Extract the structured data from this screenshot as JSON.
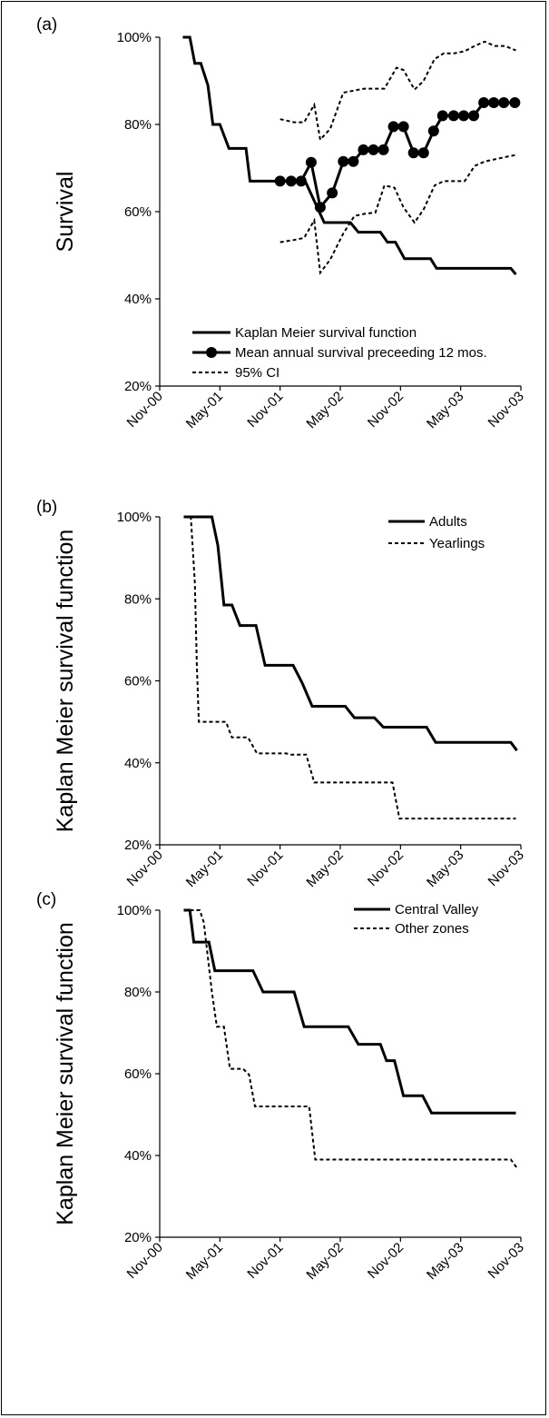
{
  "chart_data": [
    {
      "type": "line",
      "panel_label": "(a)",
      "ylabel": "Survival",
      "xlabel": "",
      "ylim": [
        0.2,
        1.0
      ],
      "yticks": [
        0.2,
        0.4,
        0.6,
        0.8,
        1.0
      ],
      "ytick_labels": [
        "20%",
        "40%",
        "60%",
        "80%",
        "100%"
      ],
      "x_tick_labels": [
        "Nov-00",
        "May-01",
        "Nov-01",
        "May-02",
        "Nov-02",
        "May-03",
        "Nov-03"
      ],
      "legend_position": "bottom-left",
      "series": [
        {
          "name": "Kaplan Meier survival function",
          "style": "solid",
          "points": [
            [
              2.3,
              1.0
            ],
            [
              3.0,
              1.0
            ],
            [
              3.5,
              0.94
            ],
            [
              4.1,
              0.94
            ],
            [
              4.8,
              0.89
            ],
            [
              5.3,
              0.8
            ],
            [
              6.0,
              0.8
            ],
            [
              6.9,
              0.745
            ],
            [
              8.6,
              0.745
            ],
            [
              9.0,
              0.67
            ],
            [
              14.5,
              0.67
            ],
            [
              16.4,
              0.575
            ],
            [
              19.0,
              0.575
            ],
            [
              19.8,
              0.553
            ],
            [
              22.0,
              0.553
            ],
            [
              22.7,
              0.53
            ],
            [
              23.5,
              0.53
            ],
            [
              24.4,
              0.492
            ],
            [
              27.0,
              0.492
            ],
            [
              27.6,
              0.47
            ],
            [
              35.0,
              0.47
            ],
            [
              35.5,
              0.456
            ]
          ]
        },
        {
          "name": "Mean annual survival preceeding 12 mos.",
          "style": "solid-markers",
          "points": [
            [
              12.0,
              0.67
            ],
            [
              13.1,
              0.67
            ],
            [
              14.1,
              0.67
            ],
            [
              15.1,
              0.713
            ],
            [
              16.0,
              0.61
            ],
            [
              17.2,
              0.643
            ],
            [
              18.3,
              0.715
            ],
            [
              19.3,
              0.715
            ],
            [
              20.3,
              0.742
            ],
            [
              21.3,
              0.742
            ],
            [
              22.3,
              0.742
            ],
            [
              23.3,
              0.795
            ],
            [
              24.3,
              0.795
            ],
            [
              25.3,
              0.735
            ],
            [
              26.3,
              0.735
            ],
            [
              27.3,
              0.785
            ],
            [
              28.2,
              0.82
            ],
            [
              29.3,
              0.82
            ],
            [
              30.3,
              0.82
            ],
            [
              31.3,
              0.82
            ],
            [
              32.3,
              0.85
            ],
            [
              33.3,
              0.85
            ],
            [
              34.3,
              0.85
            ],
            [
              35.4,
              0.85
            ]
          ]
        },
        {
          "name": "95% CI",
          "style": "dashed",
          "points": [
            [
              12.0,
              0.812
            ],
            [
              13.4,
              0.805
            ],
            [
              14.4,
              0.805
            ],
            [
              15.4,
              0.845
            ],
            [
              16.0,
              0.765
            ],
            [
              17.0,
              0.79
            ],
            [
              18.3,
              0.873
            ],
            [
              19.4,
              0.878
            ],
            [
              20.4,
              0.882
            ],
            [
              21.5,
              0.882
            ],
            [
              22.4,
              0.882
            ],
            [
              23.6,
              0.93
            ],
            [
              24.3,
              0.925
            ],
            [
              25.4,
              0.88
            ],
            [
              26.3,
              0.9
            ],
            [
              27.4,
              0.95
            ],
            [
              28.3,
              0.963
            ],
            [
              29.3,
              0.963
            ],
            [
              30.4,
              0.968
            ],
            [
              31.4,
              0.98
            ],
            [
              32.4,
              0.99
            ],
            [
              33.4,
              0.98
            ],
            [
              34.4,
              0.98
            ],
            [
              35.5,
              0.97
            ]
          ]
        },
        {
          "name": "",
          "style": "dashed",
          "points": [
            [
              12.0,
              0.53
            ],
            [
              13.4,
              0.535
            ],
            [
              14.4,
              0.54
            ],
            [
              15.4,
              0.58
            ],
            [
              16.0,
              0.46
            ],
            [
              17.0,
              0.49
            ],
            [
              18.3,
              0.55
            ],
            [
              19.4,
              0.59
            ],
            [
              20.4,
              0.595
            ],
            [
              21.5,
              0.598
            ],
            [
              22.4,
              0.66
            ],
            [
              23.4,
              0.655
            ],
            [
              24.3,
              0.61
            ],
            [
              25.4,
              0.575
            ],
            [
              26.3,
              0.605
            ],
            [
              27.4,
              0.66
            ],
            [
              28.3,
              0.67
            ],
            [
              29.3,
              0.67
            ],
            [
              30.4,
              0.67
            ],
            [
              31.4,
              0.705
            ],
            [
              32.4,
              0.715
            ],
            [
              33.4,
              0.72
            ],
            [
              34.4,
              0.725
            ],
            [
              35.5,
              0.73
            ]
          ]
        }
      ],
      "legend_entries": [
        "Kaplan Meier survival function",
        "Mean annual survival preceeding 12 mos.",
        "95% CI"
      ]
    },
    {
      "type": "line",
      "panel_label": "(b)",
      "ylabel": "Kaplan Meier survival function",
      "xlabel": "",
      "ylim": [
        0.2,
        1.0
      ],
      "yticks": [
        0.2,
        0.4,
        0.6,
        0.8,
        1.0
      ],
      "ytick_labels": [
        "20%",
        "40%",
        "60%",
        "80%",
        "100%"
      ],
      "x_tick_labels": [
        "Nov-00",
        "May-01",
        "Nov-01",
        "May-02",
        "Nov-02",
        "May-03",
        "Nov-03"
      ],
      "legend_position": "top-right",
      "series": [
        {
          "name": "Adults",
          "style": "solid",
          "points": [
            [
              2.4,
              1.0
            ],
            [
              5.2,
              1.0
            ],
            [
              5.8,
              0.93
            ],
            [
              6.4,
              0.785
            ],
            [
              7.2,
              0.785
            ],
            [
              8.0,
              0.735
            ],
            [
              9.6,
              0.735
            ],
            [
              10.5,
              0.638
            ],
            [
              13.3,
              0.638
            ],
            [
              14.2,
              0.595
            ],
            [
              15.2,
              0.538
            ],
            [
              18.5,
              0.538
            ],
            [
              19.4,
              0.51
            ],
            [
              21.4,
              0.51
            ],
            [
              22.3,
              0.487
            ],
            [
              26.6,
              0.487
            ],
            [
              27.5,
              0.45
            ],
            [
              35.0,
              0.45
            ],
            [
              35.6,
              0.43
            ]
          ]
        },
        {
          "name": "Yearlings",
          "style": "dashed",
          "points": [
            [
              2.4,
              1.0
            ],
            [
              3.1,
              1.0
            ],
            [
              3.5,
              0.84
            ],
            [
              3.7,
              0.64
            ],
            [
              3.9,
              0.5
            ],
            [
              6.6,
              0.5
            ],
            [
              7.2,
              0.462
            ],
            [
              8.8,
              0.462
            ],
            [
              9.7,
              0.423
            ],
            [
              12.6,
              0.423
            ],
            [
              13.1,
              0.42
            ],
            [
              14.6,
              0.42
            ],
            [
              15.4,
              0.352
            ],
            [
              23.2,
              0.352
            ],
            [
              23.9,
              0.264
            ],
            [
              35.5,
              0.264
            ]
          ]
        }
      ],
      "legend_entries": [
        "Adults",
        "Yearlings"
      ]
    },
    {
      "type": "line",
      "panel_label": "(c)",
      "ylabel": "Kaplan Meier survival function",
      "xlabel": "",
      "ylim": [
        0.2,
        1.0
      ],
      "yticks": [
        0.2,
        0.4,
        0.6,
        0.8,
        1.0
      ],
      "ytick_labels": [
        "20%",
        "40%",
        "60%",
        "80%",
        "100%"
      ],
      "x_tick_labels": [
        "Nov-00",
        "May-01",
        "Nov-01",
        "May-02",
        "Nov-02",
        "May-03",
        "Nov-03"
      ],
      "legend_position": "top-right",
      "series": [
        {
          "name": "Central Valley",
          "style": "solid",
          "points": [
            [
              2.4,
              1.0
            ],
            [
              3.0,
              1.0
            ],
            [
              3.4,
              0.922
            ],
            [
              4.9,
              0.922
            ],
            [
              5.5,
              0.852
            ],
            [
              9.3,
              0.852
            ],
            [
              10.3,
              0.8
            ],
            [
              13.4,
              0.8
            ],
            [
              14.4,
              0.715
            ],
            [
              18.8,
              0.715
            ],
            [
              19.8,
              0.672
            ],
            [
              22.0,
              0.672
            ],
            [
              22.6,
              0.632
            ],
            [
              23.4,
              0.632
            ],
            [
              24.3,
              0.546
            ],
            [
              26.2,
              0.546
            ],
            [
              27.1,
              0.504
            ],
            [
              35.5,
              0.504
            ]
          ]
        },
        {
          "name": "Other zones",
          "style": "dashed",
          "points": [
            [
              2.4,
              1.0
            ],
            [
              4.0,
              1.0
            ],
            [
              4.4,
              0.97
            ],
            [
              5.2,
              0.8
            ],
            [
              5.7,
              0.715
            ],
            [
              6.4,
              0.715
            ],
            [
              7.0,
              0.612
            ],
            [
              7.9,
              0.612
            ],
            [
              8.3,
              0.612
            ],
            [
              8.9,
              0.598
            ],
            [
              9.5,
              0.52
            ],
            [
              14.9,
              0.52
            ],
            [
              15.5,
              0.39
            ],
            [
              35.0,
              0.39
            ],
            [
              35.6,
              0.37
            ]
          ]
        }
      ],
      "legend_entries": [
        "Central Valley",
        "Other zones"
      ]
    }
  ]
}
